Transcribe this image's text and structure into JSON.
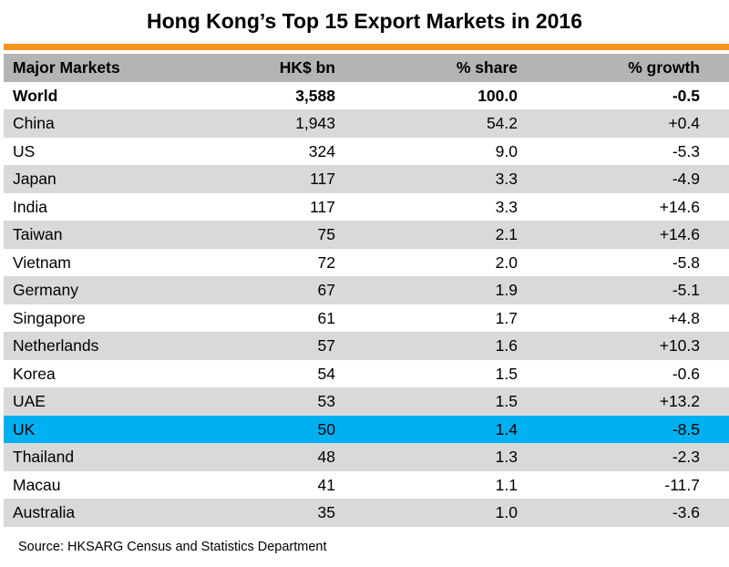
{
  "title": "Hong Kong’s Top 15 Export Markets in 2016",
  "source": "Source: HKSARG Census and Statistics Department",
  "colors": {
    "header_bg": "#b4b4b4",
    "accent_bar": "#f7941d",
    "row_shade": "#d9d9d9",
    "highlight": "#00b0f0"
  },
  "chart_data": {
    "type": "table",
    "title": "Hong Kong’s Top 15 Export Markets in 2016",
    "columns": [
      "Major Markets",
      "HK$ bn",
      "% share",
      "% growth"
    ],
    "highlighted_row": "UK",
    "rows": [
      [
        "World",
        "3,588",
        "100.0",
        "-0.5"
      ],
      [
        "China",
        "1,943",
        "54.2",
        "+0.4"
      ],
      [
        "US",
        "324",
        "9.0",
        "-5.3"
      ],
      [
        "Japan",
        "117",
        "3.3",
        "-4.9"
      ],
      [
        "India",
        "117",
        "3.3",
        "+14.6"
      ],
      [
        "Taiwan",
        "75",
        "2.1",
        "+14.6"
      ],
      [
        "Vietnam",
        "72",
        "2.0",
        "-5.8"
      ],
      [
        "Germany",
        "67",
        "1.9",
        "-5.1"
      ],
      [
        "Singapore",
        "61",
        "1.7",
        "+4.8"
      ],
      [
        "Netherlands",
        "57",
        "1.6",
        "+10.3"
      ],
      [
        "Korea",
        "54",
        "1.5",
        "-0.6"
      ],
      [
        "UAE",
        "53",
        "1.5",
        "+13.2"
      ],
      [
        "UK",
        "50",
        "1.4",
        "-8.5"
      ],
      [
        "Thailand",
        "48",
        "1.3",
        "-2.3"
      ],
      [
        "Macau",
        "41",
        "1.1",
        "-11.7"
      ],
      [
        "Australia",
        "35",
        "1.0",
        "-3.6"
      ]
    ]
  }
}
